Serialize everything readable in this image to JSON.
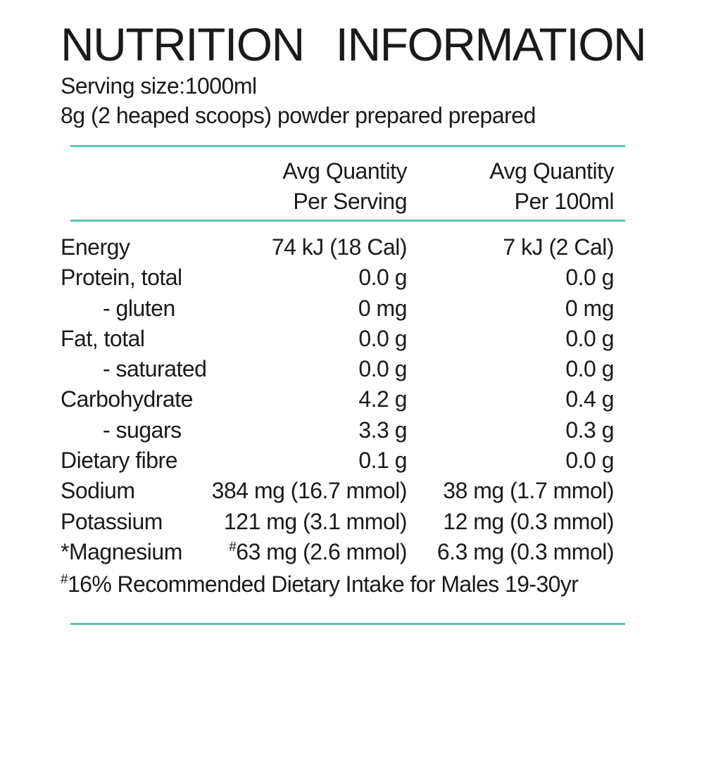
{
  "title": "NUTRITION INFORMATION",
  "serving_size": "Serving size:1000ml",
  "preparation": "8g (2 heaped scoops) powder prepared prepared",
  "columns": {
    "per_serving": [
      "Avg Quantity",
      "Per Serving"
    ],
    "per_100ml": [
      "Avg Quantity",
      "Per 100ml"
    ]
  },
  "colors": {
    "rule": "#5ec2b0",
    "text": "#1a1a1a"
  },
  "rows": [
    {
      "name": "Energy",
      "indent": false,
      "serving": "74 kJ (18 Cal)",
      "per100": "7 kJ (2 Cal)"
    },
    {
      "name": "Protein, total",
      "indent": false,
      "serving": "0.0 g",
      "per100": "0.0 g"
    },
    {
      "name": "- gluten",
      "indent": true,
      "serving": "0 mg",
      "per100": "0 mg"
    },
    {
      "name": "Fat, total",
      "indent": false,
      "serving": "0.0 g",
      "per100": "0.0 g"
    },
    {
      "name": "- saturated",
      "indent": true,
      "serving": "0.0 g",
      "per100": "0.0 g"
    },
    {
      "name": "Carbohydrate",
      "indent": false,
      "serving": "4.2 g",
      "per100": "0.4 g"
    },
    {
      "name": "- sugars",
      "indent": true,
      "serving": "3.3 g",
      "per100": "0.3 g"
    },
    {
      "name": "Dietary fibre",
      "indent": false,
      "serving": "0.1 g",
      "per100": "0.0 g"
    },
    {
      "name": "Sodium",
      "indent": false,
      "serving": "384 mg (16.7 mmol)",
      "per100": "38 mg (1.7 mmol)"
    },
    {
      "name": "Potassium",
      "indent": false,
      "serving": "121 mg (3.1 mmol)",
      "per100": "12 mg (0.3 mmol)"
    },
    {
      "name": "*Magnesium",
      "indent": false,
      "serving_mark": "#",
      "serving": "63 mg (2.6 mmol)",
      "per100": "6.3 mg (0.3 mmol)"
    }
  ],
  "footnote": {
    "mark": "#",
    "text": "16% Recommended Dietary Intake for Males 19-30yr"
  }
}
